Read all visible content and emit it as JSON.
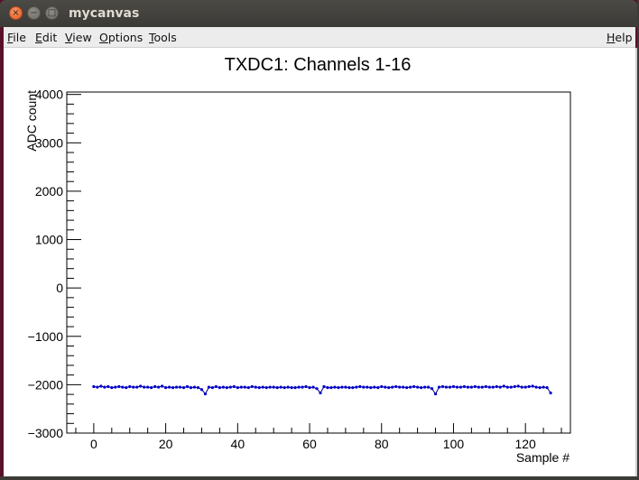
{
  "window": {
    "title": "mycanvas",
    "close_glyph": "×",
    "minimize_glyph": "−",
    "maximize_glyph": "□"
  },
  "menubar": {
    "file": {
      "hotkey": "F",
      "rest": "ile"
    },
    "edit": {
      "hotkey": "E",
      "rest": "dit"
    },
    "view": {
      "hotkey": "V",
      "rest": "iew"
    },
    "options": {
      "hotkey": "O",
      "rest": "ptions"
    },
    "tools": {
      "hotkey": "T",
      "rest": "ools"
    },
    "help": {
      "hotkey": "H",
      "rest": "elp"
    }
  },
  "colors": {
    "marker": "#0000cc",
    "line": "#000088",
    "axis": "#000000"
  },
  "chart_data": {
    "type": "scatter",
    "title": "TXDC1: Channels 1-16",
    "xlabel": "Sample #",
    "ylabel": "ADC count",
    "xlim": [
      -7.5,
      132.5
    ],
    "ylim": [
      -3000,
      4050
    ],
    "xticks": [
      0,
      20,
      40,
      60,
      80,
      100,
      120
    ],
    "xtick_labels": [
      "0",
      "20",
      "40",
      "60",
      "80",
      "100",
      "120"
    ],
    "yticks": [
      -3000,
      -2000,
      -1000,
      0,
      1000,
      2000,
      3000,
      4000
    ],
    "ytick_labels": [
      "−3000",
      "−2000",
      "−1000",
      "0",
      "1000",
      "2000",
      "3000",
      "4000"
    ],
    "grid": false,
    "series": [
      {
        "x": [
          0,
          1,
          2,
          3,
          4,
          5,
          6,
          7,
          8,
          9,
          10,
          11,
          12,
          13,
          14,
          15,
          16,
          17,
          18,
          19,
          20,
          21,
          22,
          23,
          24,
          25,
          26,
          27,
          28,
          29,
          30,
          31,
          32,
          33,
          34,
          35,
          36,
          37,
          38,
          39,
          40,
          41,
          42,
          43,
          44,
          45,
          46,
          47,
          48,
          49,
          50,
          51,
          52,
          53,
          54,
          55,
          56,
          57,
          58,
          59,
          60,
          61,
          62,
          63,
          64,
          65,
          66,
          67,
          68,
          69,
          70,
          71,
          72,
          73,
          74,
          75,
          76,
          77,
          78,
          79,
          80,
          81,
          82,
          83,
          84,
          85,
          86,
          87,
          88,
          89,
          90,
          91,
          92,
          93,
          94,
          95,
          96,
          97,
          98,
          99,
          100,
          101,
          102,
          103,
          104,
          105,
          106,
          107,
          108,
          109,
          110,
          111,
          112,
          113,
          114,
          115,
          116,
          117,
          118,
          119,
          120,
          121,
          122,
          123,
          124,
          125,
          126,
          127
        ],
        "y": [
          -2040,
          -2050,
          -2030,
          -2050,
          -2040,
          -2060,
          -2050,
          -2040,
          -2050,
          -2060,
          -2040,
          -2050,
          -2050,
          -2030,
          -2050,
          -2050,
          -2060,
          -2040,
          -2050,
          -2030,
          -2060,
          -2050,
          -2060,
          -2050,
          -2050,
          -2060,
          -2040,
          -2060,
          -2050,
          -2060,
          -2100,
          -2190,
          -2050,
          -2060,
          -2040,
          -2060,
          -2050,
          -2060,
          -2050,
          -2040,
          -2060,
          -2050,
          -2050,
          -2060,
          -2040,
          -2050,
          -2060,
          -2050,
          -2060,
          -2050,
          -2050,
          -2060,
          -2050,
          -2060,
          -2050,
          -2060,
          -2060,
          -2050,
          -2050,
          -2040,
          -2060,
          -2050,
          -2080,
          -2170,
          -2040,
          -2060,
          -2060,
          -2050,
          -2060,
          -2050,
          -2050,
          -2060,
          -2060,
          -2050,
          -2040,
          -2050,
          -2050,
          -2060,
          -2050,
          -2060,
          -2040,
          -2050,
          -2060,
          -2050,
          -2040,
          -2050,
          -2050,
          -2060,
          -2050,
          -2040,
          -2050,
          -2060,
          -2050,
          -2050,
          -2080,
          -2190,
          -2050,
          -2040,
          -2050,
          -2050,
          -2040,
          -2050,
          -2050,
          -2040,
          -2050,
          -2050,
          -2040,
          -2050,
          -2050,
          -2040,
          -2050,
          -2050,
          -2040,
          -2050,
          -2030,
          -2050,
          -2050,
          -2040,
          -2030,
          -2050,
          -2050,
          -2040,
          -2030,
          -2050,
          -2060,
          -2050,
          -2060,
          -2170
        ]
      }
    ]
  }
}
